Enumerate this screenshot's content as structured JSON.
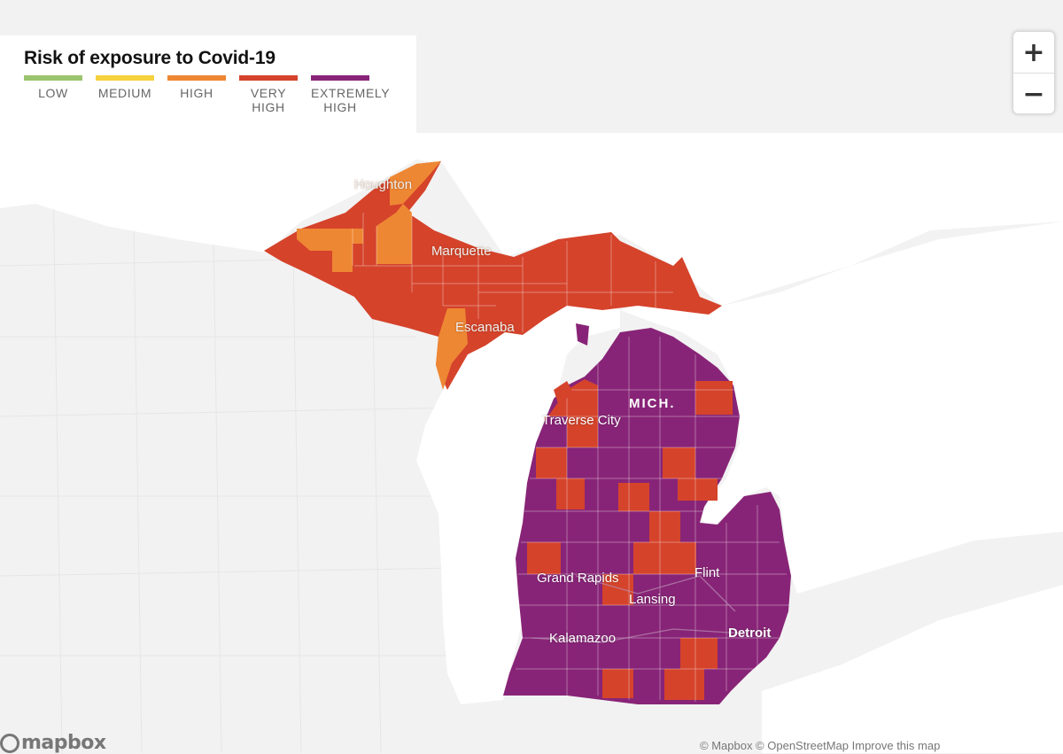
{
  "legend": {
    "title": "Risk of exposure to Covid-19",
    "levels": [
      {
        "label_lines": [
          "LOW"
        ],
        "color": "#9bc46e"
      },
      {
        "label_lines": [
          "MEDIUM"
        ],
        "color": "#f5d13e"
      },
      {
        "label_lines": [
          "HIGH"
        ],
        "color": "#ee8733"
      },
      {
        "label_lines": [
          "VERY",
          "HIGH"
        ],
        "color": "#d5432b"
      },
      {
        "label_lines": [
          "EXTREMELY",
          "HIGH"
        ],
        "color": "#882477"
      }
    ]
  },
  "zoom": {
    "in_label": "+",
    "out_label": "−"
  },
  "state_label": "MICH.",
  "cities": {
    "houghton": "Houghton",
    "marquette": "Marquette",
    "escanaba": "Escanaba",
    "traverse_city": "Traverse City",
    "grand_rapids": "Grand Rapids",
    "flint": "Flint",
    "lansing": "Lansing",
    "kalamazoo": "Kalamazoo",
    "detroit": "Detroit"
  },
  "colors": {
    "high": "#ee8733",
    "very_high": "#d5432b",
    "extremely_high": "#882477",
    "water": "#ffffff",
    "land": "#f2f2f2"
  },
  "mapbox_logo": "mapbox",
  "attribution": "© Mapbox © OpenStreetMap Improve this map"
}
